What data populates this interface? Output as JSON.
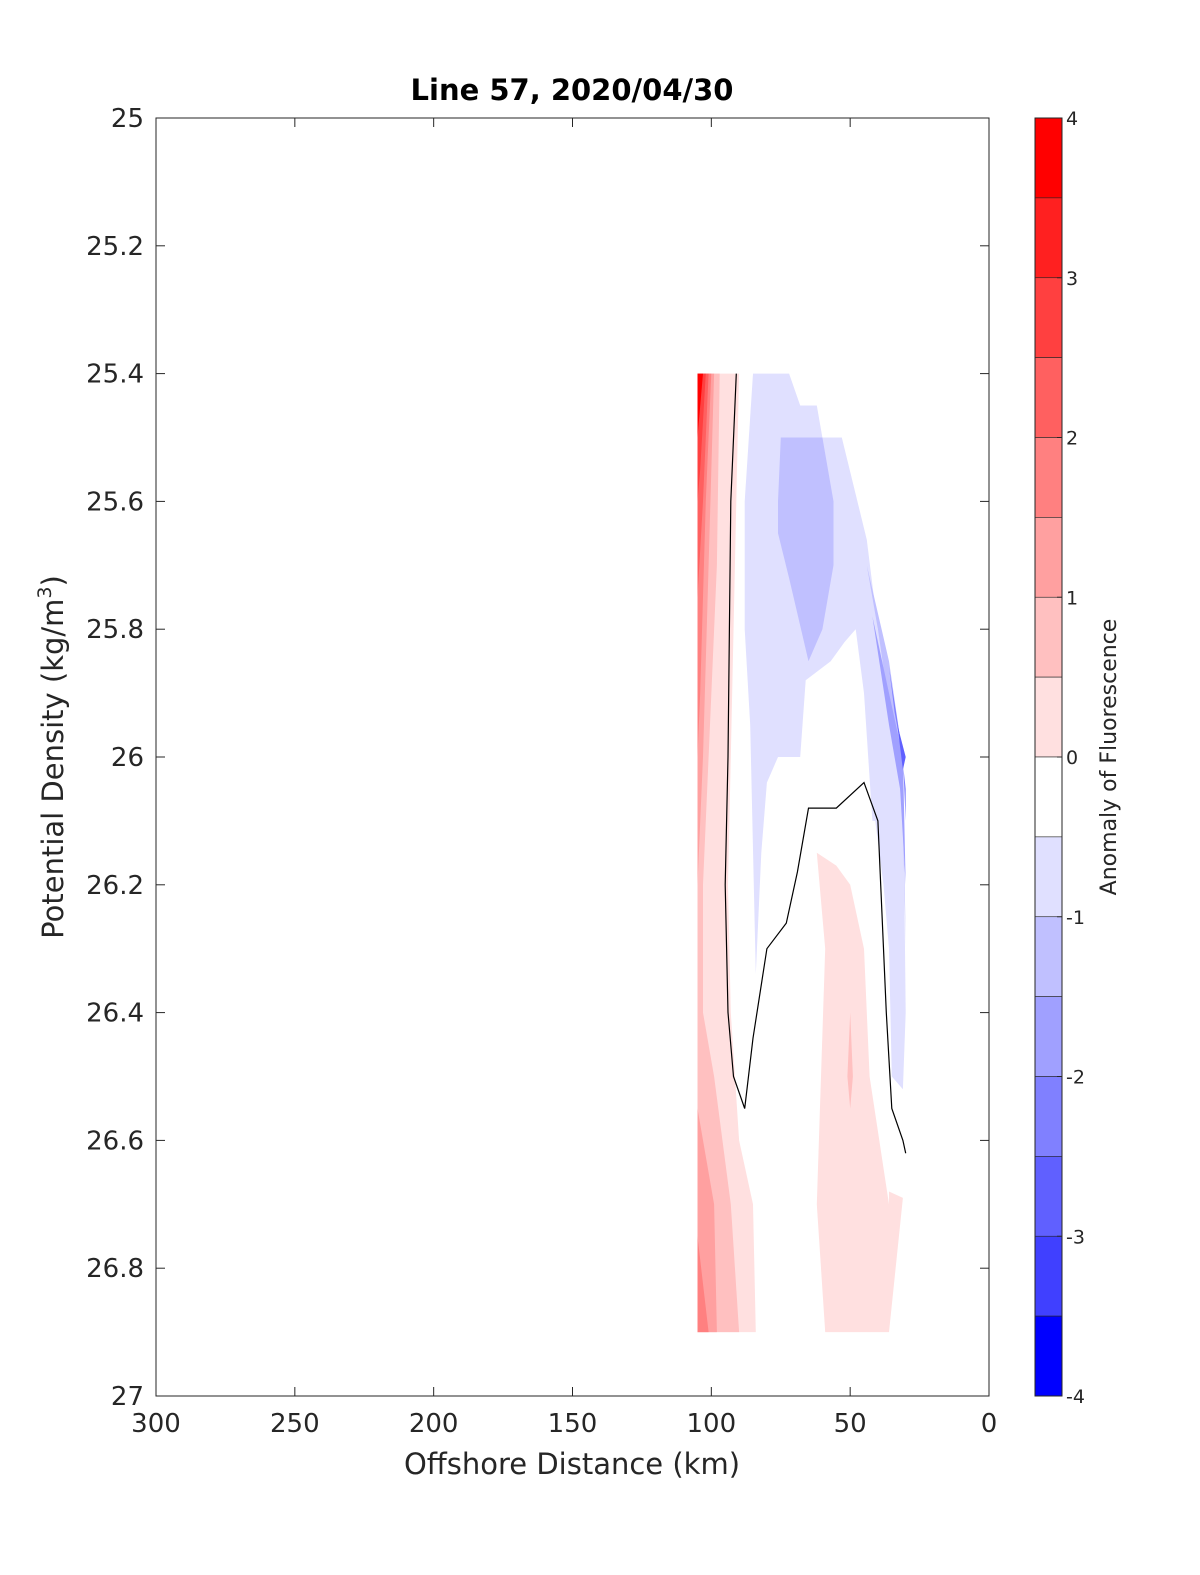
{
  "chart_data": {
    "type": "heatmap",
    "title": "Line 57, 2020/04/30",
    "xlabel": "Offshore Distance (km)",
    "ylabel": "Potential Density (kg/m",
    "ylabel_superscript": "3",
    "ylabel_suffix": ")",
    "xlim": [
      300,
      0
    ],
    "x_reversed": true,
    "ylim": [
      25,
      27
    ],
    "y_reversed": true,
    "x_ticks": [
      300,
      250,
      200,
      150,
      100,
      50,
      0
    ],
    "x_tick_labels": [
      "300",
      "250",
      "200",
      "150",
      "100",
      "50",
      "0"
    ],
    "y_ticks": [
      25,
      25.2,
      25.4,
      25.6,
      25.8,
      26,
      26.2,
      26.4,
      26.6,
      26.8,
      27
    ],
    "y_tick_labels": [
      "25",
      "25.2",
      "25.4",
      "25.6",
      "25.8",
      "26",
      "26.2",
      "26.4",
      "26.6",
      "26.8",
      "27"
    ],
    "colorbar": {
      "label": "Anomaly of Fluorescence",
      "range": [
        -4,
        4
      ],
      "ticks": [
        4,
        3,
        2,
        1,
        0,
        -1,
        -2,
        -3,
        -4
      ],
      "tick_labels": [
        "4",
        "3",
        "2",
        "1",
        "0",
        "-1",
        "-2",
        "-3",
        "-4"
      ],
      "levels": [
        4,
        3.5,
        3,
        2.5,
        2,
        1.5,
        1,
        0.5,
        0,
        -0.5,
        -1,
        -1.5,
        -2,
        -2.5,
        -3,
        -3.5,
        -4
      ],
      "colors": [
        "#ff0000",
        "#ff2020",
        "#ff4040",
        "#ff6060",
        "#ff8080",
        "#ffa0a0",
        "#ffc0c0",
        "#ffe0e0",
        "#ffffff",
        "#e0e0ff",
        "#c0c0ff",
        "#a0a0ff",
        "#8080ff",
        "#6060ff",
        "#4040ff",
        "#2020ff",
        "#0000ff"
      ]
    },
    "contour_regions": [
      {
        "level": "0.5 to 1",
        "color": "#ffe0e0",
        "points": [
          [
            105,
            25.4
          ],
          [
            90,
            25.4
          ],
          [
            91,
            25.6
          ],
          [
            93,
            26.0
          ],
          [
            94,
            26.2
          ],
          [
            93,
            26.4
          ],
          [
            90,
            26.6
          ],
          [
            85,
            26.7
          ],
          [
            84,
            26.9
          ],
          [
            105,
            26.9
          ]
        ]
      },
      {
        "level": "1 to 1.5",
        "color": "#ffc0c0",
        "points": [
          [
            105,
            25.4
          ],
          [
            97,
            25.4
          ],
          [
            98,
            25.7
          ],
          [
            101,
            26.0
          ],
          [
            103,
            26.2
          ],
          [
            103,
            26.4
          ],
          [
            99,
            26.5
          ],
          [
            93,
            26.7
          ],
          [
            90,
            26.9
          ],
          [
            105,
            26.9
          ]
        ]
      },
      {
        "level": "1.5 to 2",
        "color": "#ffa0a0",
        "points": [
          [
            105,
            25.4
          ],
          [
            99,
            25.4
          ],
          [
            101,
            25.7
          ],
          [
            103,
            26.0
          ],
          [
            105,
            26.2
          ]
        ]
      },
      {
        "level": "1.5 to 2 (deep)",
        "color": "#ffa0a0",
        "points": [
          [
            105,
            26.55
          ],
          [
            99,
            26.7
          ],
          [
            98,
            26.9
          ],
          [
            105,
            26.9
          ]
        ]
      },
      {
        "level": "2 to 2.5",
        "color": "#ff8080",
        "points": [
          [
            105,
            25.4
          ],
          [
            100,
            25.4
          ],
          [
            102,
            25.6
          ],
          [
            104,
            25.9
          ],
          [
            105,
            26.0
          ]
        ]
      },
      {
        "level": "2 to 2.5 (deep)",
        "color": "#ff8080",
        "points": [
          [
            105,
            26.75
          ],
          [
            101,
            26.9
          ],
          [
            105,
            26.9
          ]
        ]
      },
      {
        "level": "2.5 to 3",
        "color": "#ff6060",
        "points": [
          [
            105,
            25.4
          ],
          [
            101,
            25.4
          ],
          [
            103,
            25.6
          ],
          [
            105,
            25.75
          ]
        ]
      },
      {
        "level": "3 to 3.5",
        "color": "#ff4040",
        "points": [
          [
            105,
            25.4
          ],
          [
            102,
            25.4
          ],
          [
            104,
            25.55
          ],
          [
            105,
            25.6
          ]
        ]
      },
      {
        "level": "3.5 to 4",
        "color": "#ff0000",
        "points": [
          [
            105,
            25.4
          ],
          [
            103,
            25.4
          ],
          [
            105,
            25.5
          ]
        ]
      },
      {
        "level": "0.5 to 1 (offshore-near patch)",
        "color": "#ffe0e0",
        "points": [
          [
            59,
            26.3
          ],
          [
            62,
            26.15
          ],
          [
            55,
            26.17
          ],
          [
            50,
            26.2
          ],
          [
            45,
            26.3
          ],
          [
            43,
            26.5
          ],
          [
            36,
            26.7
          ],
          [
            36,
            26.9
          ],
          [
            59,
            26.9
          ],
          [
            62,
            26.7
          ]
        ]
      },
      {
        "level": "0.5 to 1 (near-shore)",
        "color": "#ffe0e0",
        "points": [
          [
            36,
            26.68
          ],
          [
            31,
            26.69
          ],
          [
            36,
            26.9
          ]
        ]
      },
      {
        "level": "1 to 1.5 (small)",
        "color": "#ffc0c0",
        "points": [
          [
            50,
            26.4
          ],
          [
            49,
            26.5
          ],
          [
            50,
            26.55
          ],
          [
            51,
            26.5
          ]
        ]
      },
      {
        "level": "-0.5 to -1",
        "color": "#e0e0ff",
        "points": [
          [
            77,
            25.4
          ],
          [
            85,
            25.4
          ],
          [
            88,
            25.6
          ],
          [
            88,
            25.8
          ],
          [
            86,
            25.95
          ],
          [
            84,
            26.34
          ],
          [
            82,
            26.15
          ],
          [
            80,
            26.04
          ],
          [
            76,
            26.0
          ],
          [
            68,
            26.0
          ],
          [
            66,
            25.88
          ],
          [
            57,
            25.85
          ],
          [
            52,
            25.82
          ],
          [
            48,
            25.8
          ],
          [
            45,
            25.9
          ],
          [
            42,
            26.1
          ],
          [
            41,
            26.1
          ],
          [
            38,
            26.2
          ],
          [
            36,
            26.3
          ],
          [
            35,
            26.5
          ],
          [
            31,
            26.52
          ],
          [
            30,
            26.4
          ],
          [
            31,
            26.0
          ],
          [
            40,
            25.8
          ],
          [
            44,
            25.66
          ],
          [
            53,
            25.5
          ],
          [
            60,
            25.5
          ],
          [
            62,
            25.45
          ],
          [
            68,
            25.45
          ],
          [
            72,
            25.4
          ]
        ]
      },
      {
        "level": "-1 to -1.5",
        "color": "#c0c0ff",
        "points": [
          [
            76,
            25.6
          ],
          [
            75,
            25.5
          ],
          [
            70,
            25.5
          ],
          [
            60,
            25.5
          ],
          [
            56,
            25.6
          ],
          [
            56,
            25.7
          ],
          [
            60,
            25.8
          ],
          [
            65,
            25.85
          ],
          [
            72,
            25.72
          ],
          [
            76,
            25.65
          ]
        ]
      },
      {
        "level": "-1 to -1.5 (edge)",
        "color": "#c0c0ff",
        "points": [
          [
            44,
            25.7
          ],
          [
            40,
            25.8
          ],
          [
            36,
            25.92
          ],
          [
            33,
            26.0
          ],
          [
            31,
            26.1
          ],
          [
            30,
            26.3
          ],
          [
            31,
            26.0
          ],
          [
            36,
            25.85
          ]
        ]
      },
      {
        "level": "-1.5 to -2",
        "color": "#a0a0ff",
        "points": [
          [
            42,
            25.78
          ],
          [
            36,
            25.9
          ],
          [
            31,
            26.0
          ],
          [
            30,
            26.2
          ],
          [
            32,
            26.05
          ],
          [
            36,
            25.95
          ]
        ]
      },
      {
        "level": "-2 to -2.5",
        "color": "#8080ff",
        "points": [
          [
            36,
            25.86
          ],
          [
            32,
            25.97
          ],
          [
            30,
            26.05
          ],
          [
            30,
            26.1
          ],
          [
            31,
            26.0
          ],
          [
            34,
            25.93
          ]
        ]
      },
      {
        "level": "-2.5 to -3",
        "color": "#6060ff",
        "points": [
          [
            33,
            25.95
          ],
          [
            30,
            26.0
          ],
          [
            31,
            26.02
          ]
        ]
      }
    ],
    "contour_lines": [
      {
        "level": 0.5,
        "points": [
          [
            91,
            25.4
          ],
          [
            93,
            25.6
          ],
          [
            94,
            26.0
          ],
          [
            95,
            26.2
          ],
          [
            94,
            26.4
          ],
          [
            92,
            26.5
          ],
          [
            88,
            26.55
          ],
          [
            85,
            26.44
          ],
          [
            80,
            26.3
          ],
          [
            73,
            26.26
          ],
          [
            69,
            26.18
          ],
          [
            65,
            26.08
          ],
          [
            55,
            26.08
          ],
          [
            45,
            26.04
          ],
          [
            40,
            26.1
          ],
          [
            39,
            26.2
          ],
          [
            37,
            26.4
          ],
          [
            35,
            26.55
          ],
          [
            31,
            26.6
          ],
          [
            30,
            26.62
          ]
        ]
      }
    ]
  }
}
